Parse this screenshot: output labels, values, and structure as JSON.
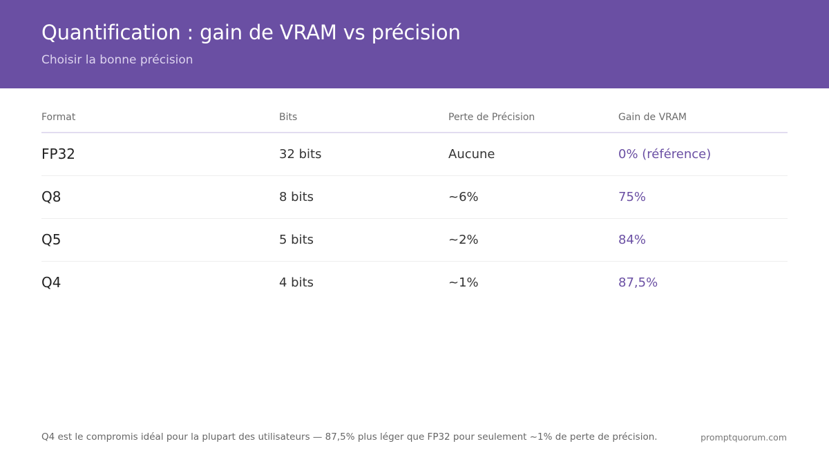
{
  "header": {
    "title": "Quantification : gain de VRAM vs précision",
    "subtitle": "Choisir la bonne précision"
  },
  "table": {
    "columns": [
      "Format",
      "Bits",
      "Perte de Précision",
      "Gain de VRAM"
    ],
    "rows": [
      {
        "format": "FP32",
        "bits": "32 bits",
        "loss": "Aucune",
        "gain": "0% (référence)"
      },
      {
        "format": "Q8",
        "bits": "8 bits",
        "loss": "~6%",
        "gain": "75%"
      },
      {
        "format": "Q5",
        "bits": "5 bits",
        "loss": "~2%",
        "gain": "84%"
      },
      {
        "format": "Q4",
        "bits": "4 bits",
        "loss": "~1%",
        "gain": "87,5%"
      }
    ]
  },
  "footer": {
    "note": "Q4 est le compromis idéal pour la plupart des utilisateurs — 87,5% plus léger que FP32 pour seulement ~1% de perte de précision.",
    "site": "promptquorum.com"
  },
  "colors": {
    "header_bg": "#6a4fa3",
    "accent": "#6a4fa3"
  }
}
